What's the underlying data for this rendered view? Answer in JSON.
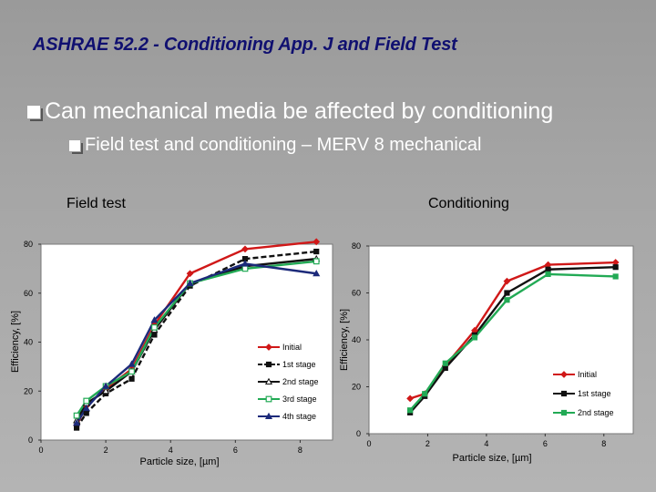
{
  "slide": {
    "title": "ASHRAE 52.2 - Conditioning App. J and Field Test",
    "bullet1": "Can mechanical media be affected by conditioning",
    "bullet2": "Field test and conditioning – MERV 8 mechanical",
    "label_left": "Field test",
    "label_right": "Conditioning"
  },
  "chart_data": [
    {
      "type": "line",
      "title": "Field test",
      "xlabel": "Particle size, [µm]",
      "ylabel": "Efficiency, [%]",
      "xlim": [
        0,
        9
      ],
      "ylim": [
        0,
        80
      ],
      "xticks": [
        0,
        2,
        4,
        6,
        8
      ],
      "yticks": [
        0,
        20,
        40,
        60,
        80
      ],
      "legend_position": "center-right",
      "series": [
        {
          "name": "Initial",
          "color": "#d01818",
          "marker": "diamond",
          "dash": "solid",
          "x": [
            1.1,
            1.4,
            2.0,
            2.8,
            3.5,
            4.6,
            6.3,
            8.5
          ],
          "y": [
            6,
            14,
            21,
            29,
            47,
            68,
            78,
            81
          ]
        },
        {
          "name": "1st stage",
          "color": "#111111",
          "marker": "square",
          "dash": "dashed",
          "x": [
            1.1,
            1.4,
            2.0,
            2.8,
            3.5,
            4.6,
            6.3,
            8.5
          ],
          "y": [
            5,
            11,
            19,
            25,
            43,
            63,
            74,
            77
          ]
        },
        {
          "name": "2nd stage",
          "color": "#111111",
          "marker": "triangle-open",
          "dash": "solid",
          "x": [
            1.1,
            1.4,
            2.0,
            2.8,
            3.5,
            4.6,
            6.3,
            8.5
          ],
          "y": [
            8,
            15,
            20,
            28,
            45,
            64,
            71,
            74
          ]
        },
        {
          "name": "3rd stage",
          "color": "#22aa55",
          "marker": "square-open",
          "dash": "solid",
          "x": [
            1.1,
            1.4,
            2.0,
            2.8,
            3.5,
            4.6,
            6.3,
            8.5
          ],
          "y": [
            10,
            16,
            22,
            28,
            46,
            64,
            70,
            73
          ]
        },
        {
          "name": "4th stage",
          "color": "#1c2a7a",
          "marker": "triangle",
          "dash": "solid",
          "x": [
            1.1,
            1.4,
            2.0,
            2.8,
            3.5,
            4.6,
            6.3,
            8.5
          ],
          "y": [
            7,
            13,
            22,
            31,
            49,
            64,
            72,
            68
          ]
        }
      ]
    },
    {
      "type": "line",
      "title": "Conditioning",
      "xlabel": "Particle size, [µm]",
      "ylabel": "Efficiency, [%]",
      "xlim": [
        0,
        9
      ],
      "ylim": [
        0,
        80
      ],
      "xticks": [
        0,
        2,
        4,
        6,
        8
      ],
      "yticks": [
        0,
        20,
        40,
        60,
        80
      ],
      "legend_position": "bottom-right",
      "series": [
        {
          "name": "Initial",
          "color": "#d01818",
          "marker": "diamond",
          "dash": "solid",
          "x": [
            1.4,
            1.9,
            2.6,
            3.6,
            4.7,
            6.1,
            8.4
          ],
          "y": [
            15,
            17,
            29,
            44,
            65,
            72,
            73
          ]
        },
        {
          "name": "1st stage",
          "color": "#111111",
          "marker": "square",
          "dash": "solid",
          "x": [
            1.4,
            1.9,
            2.6,
            3.6,
            4.7,
            6.1,
            8.4
          ],
          "y": [
            9,
            16,
            28,
            42,
            60,
            70,
            71
          ]
        },
        {
          "name": "2nd stage",
          "color": "#22aa55",
          "marker": "square",
          "dash": "solid",
          "x": [
            1.4,
            1.9,
            2.6,
            3.6,
            4.7,
            6.1,
            8.4
          ],
          "y": [
            10,
            17,
            30,
            41,
            57,
            68,
            67
          ]
        }
      ]
    }
  ]
}
